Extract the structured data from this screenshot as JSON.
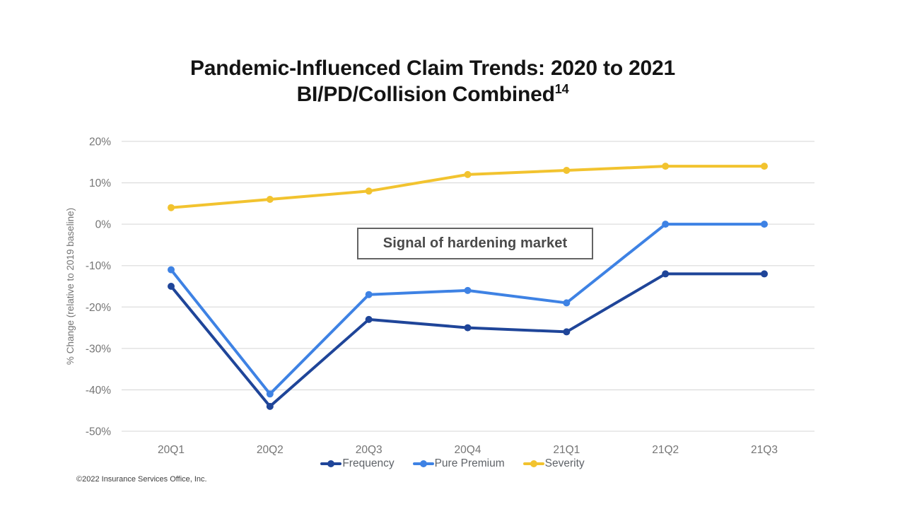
{
  "title": {
    "line1": "Pandemic-Influenced Claim Trends: 2020 to 2021",
    "line2": "BI/PD/Collision Combined",
    "footnote_marker": "14"
  },
  "annotation": {
    "text": "Signal of hardening market"
  },
  "footer": {
    "copyright": "©2022 Insurance Services Office, Inc."
  },
  "colors": {
    "grid": "#dedede",
    "axis_text": "#757575",
    "legend_text": "#5f6368",
    "title_text": "#141414"
  },
  "chart_data": {
    "type": "line",
    "title": "Pandemic-Influenced Claim Trends: 2020 to 2021 BI/PD/Collision Combined (footnote 14)",
    "categories": [
      "20Q1",
      "20Q2",
      "20Q3",
      "20Q4",
      "21Q1",
      "21Q2",
      "21Q3"
    ],
    "series": [
      {
        "name": "Frequency",
        "color": "#1F4599",
        "values": [
          -15,
          -44,
          -23,
          -25,
          -26,
          -12,
          -12
        ]
      },
      {
        "name": "Pure Premium",
        "color": "#3E82E4",
        "values": [
          -11,
          -41,
          -17,
          -16,
          -19,
          0,
          0
        ]
      },
      {
        "name": "Severity",
        "color": "#F2C32F",
        "values": [
          4,
          6,
          8,
          12,
          13,
          14,
          14
        ]
      }
    ],
    "xlabel": "",
    "ylabel": "% Change (relative to 2019 baseline)",
    "ylim": [
      -50,
      20
    ],
    "ytick_values": [
      20,
      10,
      0,
      -10,
      -20,
      -30,
      -40,
      -50
    ],
    "ytick_labels": [
      "20%",
      "10%",
      "0%",
      "-10%",
      "-20%",
      "-30%",
      "-40%",
      "-50%"
    ],
    "grid": true,
    "legend_position": "bottom",
    "annotation": "Signal of hardening market"
  }
}
